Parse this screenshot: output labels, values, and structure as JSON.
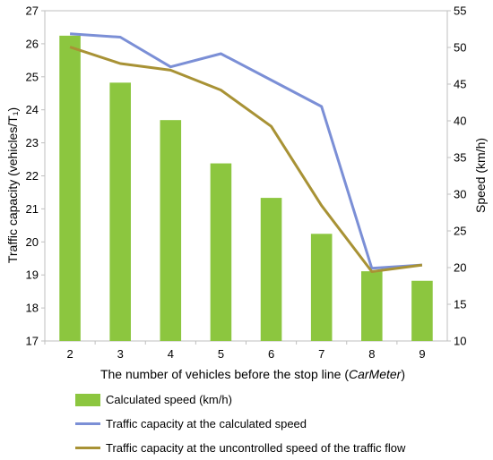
{
  "chart_data": {
    "type": "bar+line",
    "x_label_prefix": "The number of vehicles before the stop line (",
    "x_label_italic": "CarMeter",
    "x_label_suffix": ")",
    "y_left_label": "Traffic capacity (vehicles/T₁)",
    "y_right_label": "Speed (km/h)",
    "categories": [
      "2",
      "3",
      "4",
      "5",
      "6",
      "7",
      "8",
      "9"
    ],
    "y_left_lim": [
      17,
      27
    ],
    "y_left_ticks": [
      "17",
      "18",
      "19",
      "20",
      "21",
      "22",
      "23",
      "24",
      "25",
      "26",
      "27"
    ],
    "y_right_lim": [
      10,
      55
    ],
    "y_right_ticks": [
      "10",
      "15",
      "20",
      "25",
      "30",
      "35",
      "40",
      "45",
      "50",
      "55"
    ],
    "series": [
      {
        "name": "Calculated speed (km/h)",
        "kind": "bar",
        "axis": "right",
        "color": "#8cc63f",
        "values": [
          51.6,
          45.2,
          40.1,
          34.2,
          29.5,
          24.6,
          19.5,
          18.2
        ]
      },
      {
        "name": "Traffic capacity at the calculated speed",
        "kind": "line",
        "axis": "left",
        "color": "#7b8fd6",
        "values": [
          26.3,
          26.2,
          25.3,
          25.7,
          24.9,
          24.1,
          19.2,
          19.3
        ]
      },
      {
        "name": "Traffic capacity at the uncontrolled speed of the traffic flow",
        "kind": "line",
        "axis": "left",
        "color": "#a89235",
        "values": [
          25.9,
          25.4,
          25.2,
          24.6,
          23.5,
          21.1,
          19.1,
          19.3
        ]
      }
    ]
  }
}
